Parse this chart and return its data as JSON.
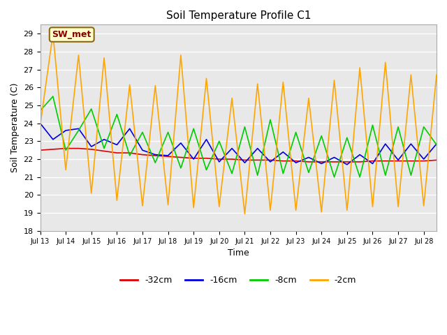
{
  "title": "Soil Temperature Profile C1",
  "xlabel": "Time",
  "ylabel": "Soil Temperature (C)",
  "ylim": [
    18.0,
    29.5
  ],
  "yticks": [
    18.0,
    19.0,
    20.0,
    21.0,
    22.0,
    23.0,
    24.0,
    25.0,
    26.0,
    27.0,
    28.0,
    29.0
  ],
  "fig_bg_color": "#ffffff",
  "plot_bg_color": "#e8e8e8",
  "annotation_text": "SW_met",
  "annotation_bg": "#ffffcc",
  "annotation_border": "#8b6914",
  "annotation_text_color": "#8b0000",
  "colors": {
    "-32cm": "#dd0000",
    "-16cm": "#0000dd",
    "-8cm": "#00cc00",
    "-2cm": "#ffa500"
  },
  "legend_labels": [
    "-32cm",
    "-16cm",
    "-8cm",
    "-2cm"
  ],
  "x_tick_labels": [
    "Jul 13",
    "Jul 14",
    "Jul 15",
    "Jul 16",
    "Jul 17",
    "Jul 18",
    "Jul 19",
    "Jul 20",
    "Jul 21",
    "Jul 22",
    "Jul 23",
    "Jul 24",
    "Jul 25",
    "Jul 26",
    "Jul 27",
    "Jul 28"
  ],
  "series_32cm": [
    22.5,
    22.55,
    22.6,
    22.6,
    22.55,
    22.45,
    22.35,
    22.35,
    22.25,
    22.2,
    22.15,
    22.1,
    22.05,
    22.05,
    22.0,
    22.0,
    21.95,
    21.95,
    21.95,
    21.9,
    21.9,
    21.85,
    21.85,
    21.85,
    21.85,
    21.85,
    21.9,
    21.9,
    21.9,
    21.9,
    21.9,
    21.95
  ],
  "series_16cm": [
    24.0,
    23.1,
    23.6,
    23.7,
    22.7,
    23.1,
    22.8,
    23.7,
    22.5,
    22.25,
    22.2,
    22.9,
    22.0,
    23.1,
    21.85,
    22.6,
    21.8,
    22.6,
    21.85,
    22.4,
    21.8,
    22.1,
    21.75,
    22.1,
    21.7,
    22.25,
    21.75,
    22.85,
    21.95,
    22.85,
    22.0,
    22.85
  ],
  "series_8cm": [
    24.7,
    25.5,
    22.5,
    23.6,
    24.8,
    22.6,
    24.5,
    22.2,
    23.5,
    21.8,
    23.5,
    21.5,
    23.7,
    21.4,
    23.0,
    21.2,
    23.8,
    21.1,
    24.2,
    21.2,
    23.5,
    21.25,
    23.3,
    21.0,
    23.2,
    21.0,
    23.9,
    21.1,
    23.8,
    21.1,
    23.8,
    22.8
  ],
  "series_2cm": [
    23.9,
    29.0,
    21.4,
    27.8,
    20.1,
    27.65,
    19.7,
    26.15,
    19.4,
    26.1,
    19.45,
    27.8,
    19.3,
    26.5,
    19.35,
    25.4,
    18.95,
    26.2,
    19.15,
    26.3,
    19.15,
    25.4,
    19.05,
    26.4,
    19.15,
    27.1,
    19.35,
    27.4,
    19.35,
    26.7,
    19.4,
    26.7
  ]
}
